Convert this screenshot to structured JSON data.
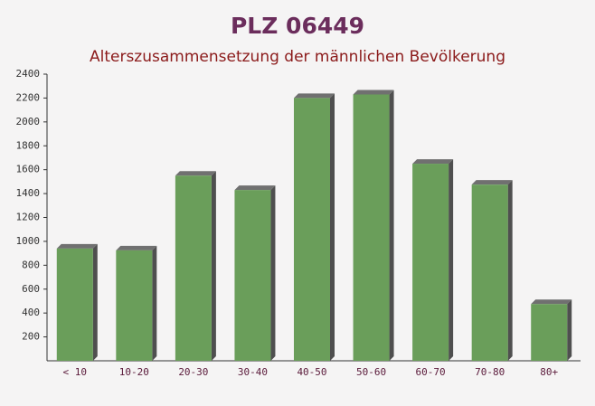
{
  "chart_data": {
    "type": "bar",
    "title": "PLZ 06449",
    "subtitle": "Alterszusammensetzung der männlichen Bevölkerung",
    "categories": [
      "< 10",
      "10-20",
      "20-30",
      "30-40",
      "40-50",
      "50-60",
      "60-70",
      "70-80",
      "80+"
    ],
    "values": [
      940,
      925,
      1550,
      1430,
      2200,
      2230,
      1650,
      1475,
      475
    ],
    "color": "#6a9e5a",
    "ylim": [
      0,
      2400
    ],
    "yticks": [
      200,
      400,
      600,
      800,
      1000,
      1200,
      1400,
      1600,
      1800,
      2000,
      2200,
      2400
    ]
  }
}
